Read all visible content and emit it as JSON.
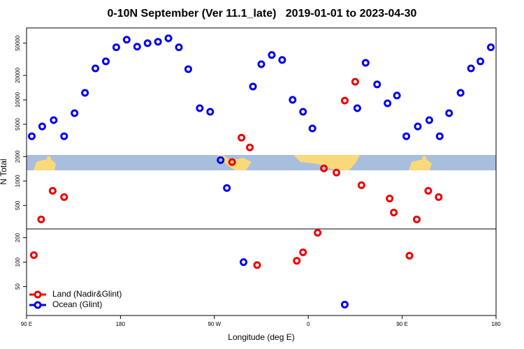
{
  "chart_data": {
    "type": "scatter",
    "title": "0-10N September (Ver 11.1_late)   2019-01-01 to 2023-04-30",
    "x_label": "Longitude (deg E)",
    "y_label": "N Total",
    "xlim": [
      90,
      540
    ],
    "xticks": [
      {
        "value": 90,
        "label": "90 E"
      },
      180,
      {
        "value": 270,
        "label": "90 W"
      },
      {
        "value": 360,
        "label": "0"
      },
      {
        "value": 450,
        "label": "90 E"
      },
      {
        "value": 540,
        "label": "180"
      }
    ],
    "ylim": [
      22,
      77000
    ],
    "y_log": true,
    "yticks": [
      50,
      100,
      200,
      500,
      1000,
      2000,
      5000,
      10000,
      20000,
      50000
    ],
    "grid": false,
    "legend": "bottom-left",
    "series": [
      {
        "name": "Land (Nadir&Glint)",
        "color": "#ee0000",
        "x": [
          97,
          104,
          115,
          126,
          287,
          296,
          304,
          311,
          349,
          355,
          369,
          375,
          387,
          395,
          405,
          411,
          438,
          442,
          457,
          464,
          475,
          485
        ],
        "values": [
          122,
          336,
          757,
          634,
          1710,
          3420,
          2590,
          92,
          104,
          132,
          230,
          1430,
          1270,
          9790,
          16700,
          888,
          608,
          409,
          120,
          336,
          757,
          634
        ]
      },
      {
        "name": "Ocean (Glint)",
        "color": "#0000ee",
        "x": [
          95,
          105,
          116,
          126,
          136,
          146,
          156,
          166,
          176,
          186,
          196,
          206,
          216,
          226,
          236,
          245,
          256,
          266,
          276,
          282,
          298,
          307,
          315,
          325,
          335,
          345,
          355,
          364,
          395,
          407,
          415,
          426,
          436,
          445,
          454,
          465,
          476,
          486,
          495,
          506,
          516,
          525,
          535
        ],
        "values": [
          3560,
          4700,
          5620,
          3560,
          6850,
          12200,
          24400,
          29800,
          44400,
          55100,
          45200,
          49900,
          52000,
          57400,
          44400,
          23900,
          7890,
          7130,
          1810,
          820,
          100,
          14600,
          27500,
          35700,
          31000,
          10000,
          7130,
          4440,
          30,
          7890,
          28600,
          15500,
          9060,
          11300,
          3560,
          4700,
          5620,
          3560,
          6850,
          12200,
          24400,
          29800,
          44400
        ]
      }
    ]
  }
}
